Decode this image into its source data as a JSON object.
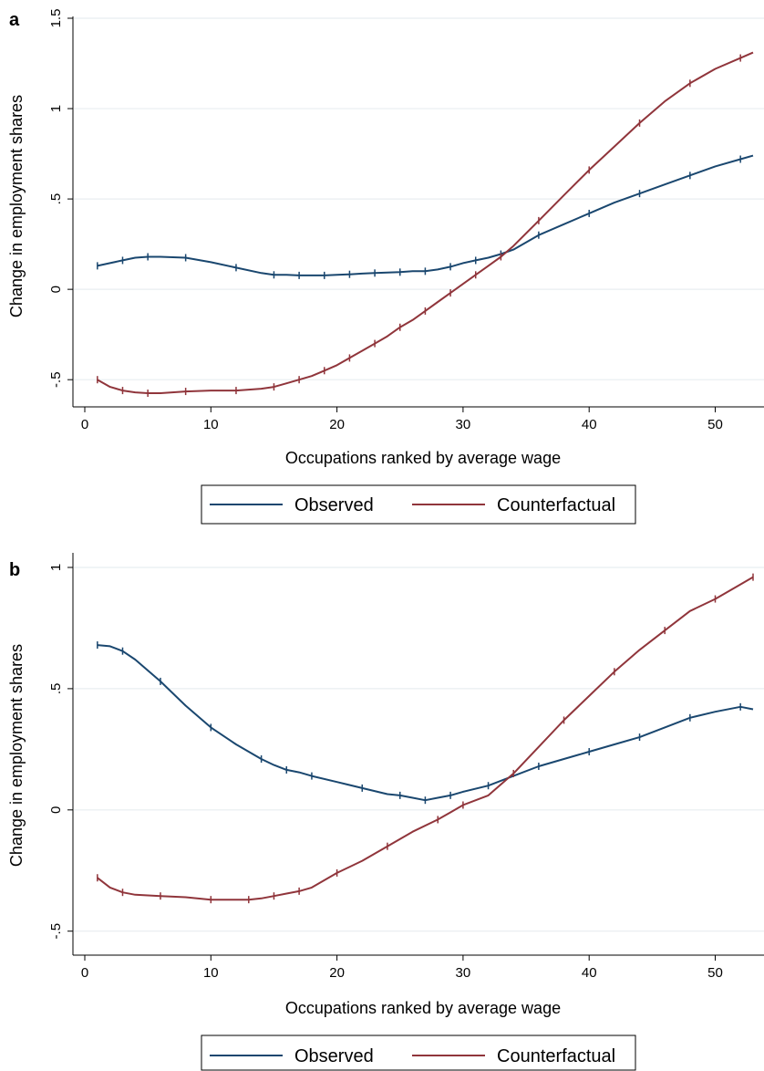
{
  "chart_data": [
    {
      "panel": "a",
      "type": "line",
      "xlabel": "Occupations ranked by average wage",
      "ylabel": "Change in employment shares",
      "xlim": [
        0,
        53
      ],
      "ylim": [
        -0.6,
        1.5
      ],
      "xticks": [
        0,
        10,
        20,
        30,
        40,
        50
      ],
      "xtick_labels": [
        "0",
        "10",
        "20",
        "30",
        "40",
        "50"
      ],
      "yticks": [
        -0.5,
        0,
        0.5,
        1,
        1.5
      ],
      "ytick_labels": [
        "-.5",
        "0",
        ".5",
        "1",
        "1.5"
      ],
      "grid": true,
      "legend_position": "bottom",
      "series": [
        {
          "name": "Observed",
          "color": "#1a476f",
          "x": [
            1,
            2,
            3,
            4,
            5,
            6,
            8,
            10,
            12,
            14,
            15,
            16,
            17,
            18,
            19,
            20,
            21,
            22,
            23,
            24,
            25,
            26,
            27,
            28,
            29,
            30,
            31,
            32,
            33,
            34,
            36,
            38,
            40,
            42,
            44,
            46,
            48,
            50,
            52,
            53
          ],
          "y": [
            0.13,
            0.145,
            0.16,
            0.175,
            0.18,
            0.18,
            0.175,
            0.15,
            0.12,
            0.09,
            0.08,
            0.08,
            0.077,
            0.077,
            0.077,
            0.08,
            0.083,
            0.087,
            0.09,
            0.093,
            0.095,
            0.1,
            0.1,
            0.11,
            0.125,
            0.145,
            0.16,
            0.175,
            0.195,
            0.22,
            0.3,
            0.36,
            0.42,
            0.48,
            0.53,
            0.58,
            0.63,
            0.68,
            0.72,
            0.74
          ]
        },
        {
          "name": "Counterfactual",
          "color": "#90353b",
          "x": [
            1,
            2,
            3,
            4,
            5,
            6,
            8,
            10,
            12,
            14,
            15,
            16,
            17,
            18,
            19,
            20,
            21,
            22,
            23,
            24,
            25,
            26,
            27,
            28,
            29,
            30,
            31,
            32,
            33,
            34,
            36,
            38,
            40,
            42,
            44,
            46,
            48,
            50,
            52,
            53
          ],
          "y": [
            -0.5,
            -0.54,
            -0.56,
            -0.57,
            -0.575,
            -0.575,
            -0.565,
            -0.56,
            -0.56,
            -0.55,
            -0.54,
            -0.52,
            -0.5,
            -0.48,
            -0.45,
            -0.42,
            -0.38,
            -0.34,
            -0.3,
            -0.26,
            -0.21,
            -0.17,
            -0.12,
            -0.07,
            -0.02,
            0.03,
            0.08,
            0.13,
            0.18,
            0.24,
            0.38,
            0.52,
            0.66,
            0.79,
            0.92,
            1.04,
            1.14,
            1.22,
            1.28,
            1.31
          ]
        }
      ]
    },
    {
      "panel": "b",
      "type": "line",
      "xlabel": "Occupations ranked by average wage",
      "ylabel": "Change in employment shares",
      "xlim": [
        0,
        53
      ],
      "ylim": [
        -0.55,
        1.0
      ],
      "xticks": [
        0,
        10,
        20,
        30,
        40,
        50
      ],
      "xtick_labels": [
        "0",
        "10",
        "20",
        "30",
        "40",
        "50"
      ],
      "yticks": [
        -0.5,
        0,
        0.5,
        1
      ],
      "ytick_labels": [
        "-.5",
        "0",
        ".5",
        "1"
      ],
      "grid": true,
      "legend_position": "bottom",
      "series": [
        {
          "name": "Observed",
          "color": "#1a476f",
          "x": [
            1,
            2,
            3,
            4,
            6,
            8,
            10,
            12,
            14,
            15,
            16,
            17,
            18,
            20,
            22,
            24,
            25,
            26,
            27,
            28,
            29,
            30,
            32,
            34,
            36,
            38,
            40,
            42,
            44,
            46,
            48,
            50,
            52,
            53
          ],
          "y": [
            0.68,
            0.675,
            0.655,
            0.62,
            0.53,
            0.43,
            0.34,
            0.27,
            0.21,
            0.185,
            0.165,
            0.155,
            0.14,
            0.115,
            0.09,
            0.065,
            0.06,
            0.05,
            0.04,
            0.05,
            0.06,
            0.075,
            0.1,
            0.14,
            0.18,
            0.21,
            0.24,
            0.27,
            0.3,
            0.34,
            0.38,
            0.405,
            0.425,
            0.415
          ]
        },
        {
          "name": "Counterfactual",
          "color": "#90353b",
          "x": [
            1,
            2,
            3,
            4,
            6,
            8,
            10,
            12,
            13,
            14,
            15,
            16,
            17,
            18,
            20,
            22,
            24,
            26,
            28,
            29,
            30,
            32,
            34,
            36,
            38,
            40,
            42,
            44,
            46,
            48,
            50,
            52,
            53
          ],
          "y": [
            -0.28,
            -0.32,
            -0.34,
            -0.35,
            -0.355,
            -0.36,
            -0.37,
            -0.37,
            -0.37,
            -0.365,
            -0.355,
            -0.345,
            -0.335,
            -0.32,
            -0.26,
            -0.21,
            -0.15,
            -0.09,
            -0.04,
            -0.01,
            0.02,
            0.06,
            0.15,
            0.26,
            0.37,
            0.47,
            0.57,
            0.66,
            0.74,
            0.82,
            0.87,
            0.93,
            0.96
          ]
        }
      ]
    }
  ]
}
